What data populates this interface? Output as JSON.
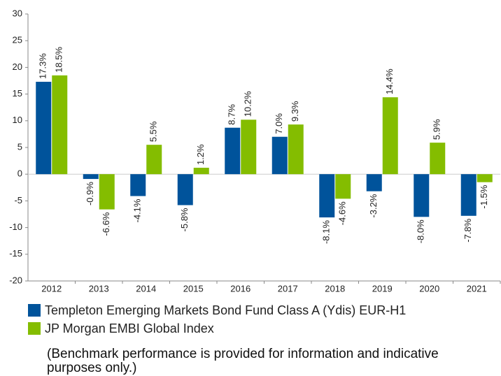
{
  "chart_data": {
    "type": "bar",
    "categories": [
      "2012",
      "2013",
      "2014",
      "2015",
      "2016",
      "2017",
      "2018",
      "2019",
      "2020",
      "2021"
    ],
    "series": [
      {
        "name": "Templeton Emerging Markets Bond Fund Class A (Ydis) EUR-H1",
        "color": "#00539b",
        "values": [
          17.3,
          -0.9,
          -4.1,
          -5.8,
          8.7,
          7.0,
          -8.1,
          -3.2,
          -8.0,
          -7.8
        ],
        "value_labels": [
          "17.3%",
          "-0.9%",
          "-4.1%",
          "-5.8%",
          "8.7%",
          "7.0%",
          "-8.1%",
          "-3.2%",
          "-8.0%",
          "-7.8%"
        ]
      },
      {
        "name": "JP Morgan EMBI Global Index",
        "color": "#84bd00",
        "values": [
          18.5,
          -6.6,
          5.5,
          1.2,
          10.2,
          9.3,
          -4.6,
          14.4,
          5.9,
          -1.5
        ],
        "value_labels": [
          "18.5%",
          "-6.6%",
          "5.5%",
          "1.2%",
          "10.2%",
          "9.3%",
          "-4.6%",
          "14.4%",
          "5.9%",
          "-1.5%"
        ]
      }
    ],
    "ylim": [
      -20,
      30
    ],
    "yticks": [
      -20,
      -15,
      -10,
      -5,
      0,
      5,
      10,
      15,
      20,
      25,
      30
    ],
    "grid": false,
    "note": "(Benchmark performance is provided for information and indicative purposes only.)"
  }
}
